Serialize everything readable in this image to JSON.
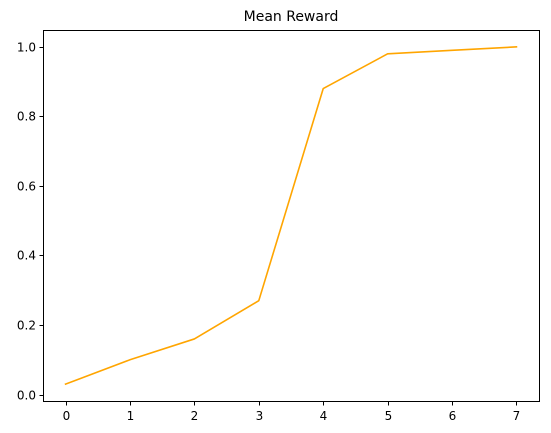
{
  "chart_data": {
    "type": "line",
    "title": "Mean Reward",
    "xlabel": "",
    "ylabel": "",
    "x": [
      0,
      1,
      2,
      3,
      4,
      5,
      6,
      7
    ],
    "series": [
      {
        "values": [
          0.03,
          0.1,
          0.16,
          0.27,
          0.88,
          0.98,
          0.99,
          1.0
        ],
        "color": "#FFA500"
      }
    ],
    "xlim": [
      -0.35,
      7.35
    ],
    "ylim": [
      -0.0185,
      1.0485
    ],
    "xticks": [
      0,
      1,
      2,
      3,
      4,
      5,
      6,
      7
    ],
    "xtick_labels": [
      "0",
      "1",
      "2",
      "3",
      "4",
      "5",
      "6",
      "7"
    ],
    "yticks": [
      0.0,
      0.2,
      0.4,
      0.6,
      0.8,
      1.0
    ],
    "ytick_labels": [
      "0.0",
      "0.2",
      "0.4",
      "0.6",
      "0.8",
      "1.0"
    ],
    "grid": false,
    "legend": "none"
  }
}
